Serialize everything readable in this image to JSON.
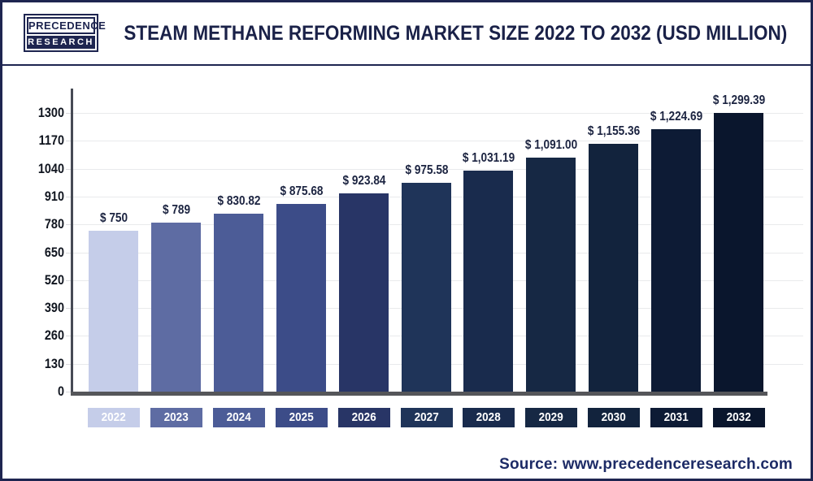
{
  "header": {
    "logo_line1": "PRECEDENCE",
    "logo_line2": "RESEARCH",
    "title": "STEAM METHANE REFORMING MARKET SIZE 2022 TO 2032 (USD MILLION)"
  },
  "chart_data": {
    "type": "bar",
    "title": "Steam Methane Reforming Market Size 2022 to 2032 (USD Million)",
    "categories": [
      "2022",
      "2023",
      "2024",
      "2025",
      "2026",
      "2027",
      "2028",
      "2029",
      "2030",
      "2031",
      "2032"
    ],
    "values": [
      750,
      789,
      830.82,
      875.68,
      923.84,
      975.58,
      1031.19,
      1091.0,
      1155.36,
      1224.69,
      1299.39
    ],
    "value_labels": [
      "$ 750",
      "$ 789",
      "$ 830.82",
      "$ 875.68",
      "$ 923.84",
      "$ 975.58",
      "$ 1,031.19",
      "$ 1,091.00",
      "$ 1,155.36",
      "$ 1,224.69",
      "$ 1,299.39"
    ],
    "bar_colors": [
      "#c5cde9",
      "#5e6ca3",
      "#4c5c97",
      "#3c4c88",
      "#283566",
      "#1f3459",
      "#192b4d",
      "#162844",
      "#12233d",
      "#0d1b35",
      "#0a162d"
    ],
    "xlabel": "",
    "ylabel": "",
    "ylim": [
      0,
      1300
    ],
    "yticks": [
      0,
      130,
      260,
      390,
      520,
      650,
      780,
      910,
      1040,
      1170,
      1300
    ],
    "grid": true,
    "legend": "none"
  },
  "footer": {
    "source": "Source: www.precedenceresearch.com"
  },
  "colors": {
    "navy": "#1e2550",
    "title_text": "#1a2148",
    "axis": "#474b55",
    "baseline": "#55565a",
    "gridline": "#e9eaec",
    "value_label": "#1b2340",
    "source_text": "#1d2b66"
  }
}
